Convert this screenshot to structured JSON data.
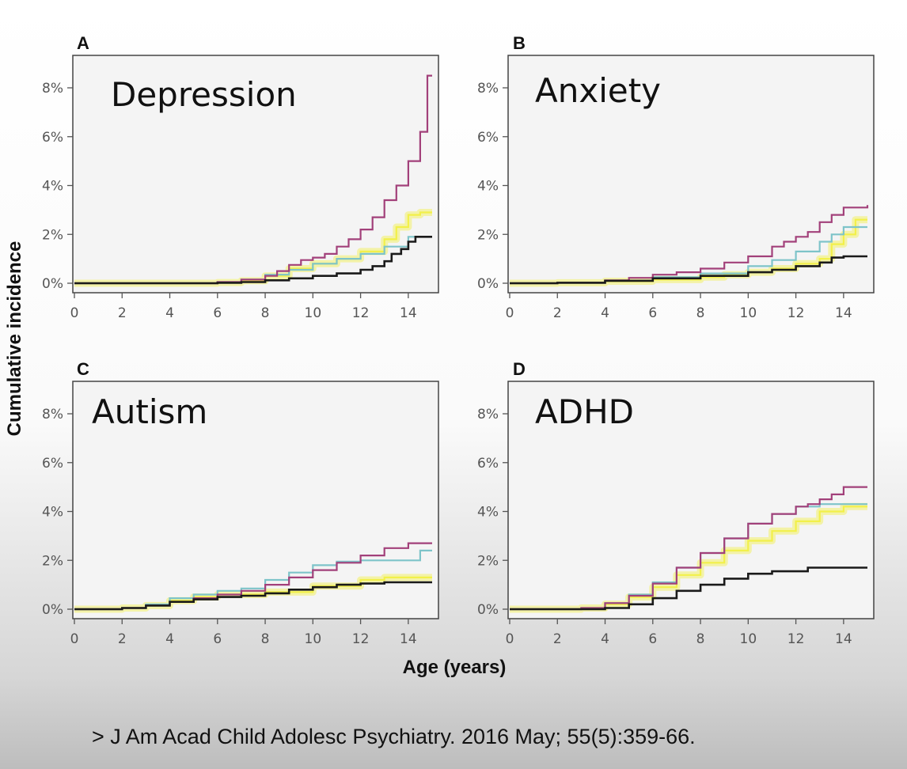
{
  "citation": "> J Am Acad Child Adolesc Psychiatry. 2016 May; 55(5):359-66.",
  "colors": {
    "purple": "#a2407a",
    "cyan": "#7ec4c9",
    "yellow": "#f2f04a",
    "black": "#1a1a1a"
  },
  "chart_data": {
    "type": "line",
    "step": true,
    "xlabel": "Age (years)",
    "ylabel": "Cumulative incidence",
    "xlim": [
      0,
      15
    ],
    "ylim": [
      0,
      9
    ],
    "x_ticks": [
      0,
      2,
      4,
      6,
      8,
      10,
      12,
      14
    ],
    "x_tick_labels": [
      "0",
      "2",
      "4",
      "6",
      "8",
      "10",
      "12",
      "14"
    ],
    "y_ticks": [
      0,
      2,
      4,
      6,
      8
    ],
    "y_tick_labels": [
      "0%",
      "2%",
      "4%",
      "6%",
      "8%"
    ],
    "grid": false,
    "legend": "none",
    "panels": [
      {
        "letter": "A",
        "title": "Depression",
        "series": [
          {
            "color": "#f2f04a",
            "x": [
              0,
              6,
              7,
              8,
              9,
              10,
              11,
              12,
              13,
              13.5,
              14,
              14.5,
              15
            ],
            "y": [
              0,
              0.03,
              0.1,
              0.3,
              0.6,
              0.8,
              1.0,
              1.3,
              1.8,
              2.3,
              2.8,
              2.9,
              2.9
            ]
          },
          {
            "color": "#7ec4c9",
            "x": [
              0,
              6,
              7,
              8,
              9,
              10,
              11,
              12,
              13,
              14,
              15
            ],
            "y": [
              0,
              0.05,
              0.15,
              0.35,
              0.55,
              0.8,
              1.0,
              1.2,
              1.5,
              1.9,
              1.9
            ]
          },
          {
            "color": "#a2407a",
            "x": [
              0,
              6,
              7,
              8,
              8.5,
              9,
              9.5,
              10,
              10.5,
              11,
              11.5,
              12,
              12.5,
              13,
              13.5,
              14,
              14.5,
              14.8,
              15
            ],
            "y": [
              0,
              0.05,
              0.15,
              0.3,
              0.5,
              0.75,
              0.95,
              1.05,
              1.2,
              1.5,
              1.8,
              2.2,
              2.7,
              3.4,
              4.0,
              5.0,
              6.2,
              8.5,
              8.5
            ]
          },
          {
            "color": "#1a1a1a",
            "x": [
              0,
              6,
              7,
              8,
              9,
              10,
              11,
              12,
              12.5,
              13,
              13.3,
              13.7,
              14,
              14.3,
              15
            ],
            "y": [
              0,
              0.02,
              0.05,
              0.12,
              0.2,
              0.3,
              0.4,
              0.55,
              0.7,
              0.9,
              1.2,
              1.4,
              1.7,
              1.9,
              1.9
            ]
          }
        ]
      },
      {
        "letter": "B",
        "title": "Anxiety",
        "series": [
          {
            "color": "#f2f04a",
            "x": [
              0,
              2,
              4,
              6,
              8,
              9,
              10,
              11,
              12,
              13,
              13.5,
              14,
              14.5,
              15
            ],
            "y": [
              0,
              0.02,
              0.08,
              0.15,
              0.25,
              0.35,
              0.45,
              0.6,
              0.8,
              1.0,
              1.6,
              2.0,
              2.6,
              2.6
            ]
          },
          {
            "color": "#7ec4c9",
            "x": [
              0,
              2,
              4,
              6,
              8,
              10,
              11,
              12,
              13,
              13.5,
              14,
              15
            ],
            "y": [
              0,
              0.02,
              0.1,
              0.25,
              0.4,
              0.7,
              0.95,
              1.3,
              1.7,
              2.0,
              2.3,
              2.3
            ]
          },
          {
            "color": "#a2407a",
            "x": [
              0,
              2,
              4,
              5,
              6,
              7,
              8,
              9,
              10,
              11,
              11.5,
              12,
              12.5,
              13,
              13.5,
              14,
              15
            ],
            "y": [
              0,
              0.02,
              0.12,
              0.22,
              0.35,
              0.45,
              0.6,
              0.85,
              1.1,
              1.5,
              1.7,
              1.9,
              2.1,
              2.5,
              2.8,
              3.1,
              3.2
            ]
          },
          {
            "color": "#1a1a1a",
            "x": [
              0,
              2,
              4,
              6,
              8,
              10,
              11,
              12,
              13,
              13.5,
              14,
              15
            ],
            "y": [
              0,
              0.02,
              0.1,
              0.2,
              0.3,
              0.45,
              0.55,
              0.7,
              0.85,
              1.05,
              1.1,
              1.1
            ]
          }
        ]
      },
      {
        "letter": "C",
        "title": "Autism",
        "series": [
          {
            "color": "#f2f04a",
            "x": [
              0,
              2,
              3,
              4,
              5,
              6,
              8,
              10,
              12,
              13,
              15
            ],
            "y": [
              0,
              0.05,
              0.15,
              0.35,
              0.5,
              0.6,
              0.7,
              0.95,
              1.2,
              1.3,
              1.3
            ]
          },
          {
            "color": "#7ec4c9",
            "x": [
              0,
              2,
              3,
              4,
              5,
              6,
              7,
              8,
              9,
              10,
              11,
              12,
              13,
              14,
              14.5,
              15
            ],
            "y": [
              0,
              0.05,
              0.2,
              0.45,
              0.6,
              0.75,
              0.85,
              1.2,
              1.5,
              1.8,
              1.95,
              2.0,
              2.0,
              2.0,
              2.4,
              2.4
            ]
          },
          {
            "color": "#a2407a",
            "x": [
              0,
              2,
              3,
              4,
              5,
              6,
              7,
              8,
              9,
              10,
              11,
              12,
              13,
              14,
              15
            ],
            "y": [
              0,
              0.05,
              0.15,
              0.3,
              0.45,
              0.6,
              0.75,
              1.0,
              1.3,
              1.6,
              1.9,
              2.2,
              2.5,
              2.7,
              2.7
            ]
          },
          {
            "color": "#1a1a1a",
            "x": [
              0,
              2,
              3,
              4,
              5,
              6,
              7,
              8,
              9,
              10,
              11,
              12,
              13,
              15
            ],
            "y": [
              0,
              0.05,
              0.15,
              0.3,
              0.4,
              0.5,
              0.55,
              0.65,
              0.8,
              0.9,
              1.0,
              1.05,
              1.1,
              1.1
            ]
          }
        ]
      },
      {
        "letter": "D",
        "title": "ADHD",
        "series": [
          {
            "color": "#f2f04a",
            "x": [
              0,
              3,
              4,
              5,
              6,
              7,
              8,
              9,
              10,
              11,
              12,
              13,
              14,
              15
            ],
            "y": [
              0,
              0.05,
              0.2,
              0.5,
              0.9,
              1.4,
              1.9,
              2.4,
              2.8,
              3.2,
              3.6,
              4.0,
              4.2,
              4.2
            ]
          },
          {
            "color": "#7ec4c9",
            "x": [
              0,
              3,
              4,
              5,
              6,
              7,
              8,
              9,
              10,
              11,
              12,
              13,
              14,
              15
            ],
            "y": [
              0,
              0.05,
              0.25,
              0.6,
              1.1,
              1.7,
              2.3,
              2.9,
              3.5,
              3.9,
              4.2,
              4.3,
              4.3,
              4.3
            ]
          },
          {
            "color": "#a2407a",
            "x": [
              0,
              3,
              4,
              5,
              6,
              7,
              8,
              9,
              10,
              11,
              12,
              12.5,
              13,
              13.5,
              14,
              15
            ],
            "y": [
              0,
              0.05,
              0.25,
              0.55,
              1.05,
              1.7,
              2.3,
              2.9,
              3.5,
              3.9,
              4.2,
              4.3,
              4.5,
              4.7,
              5.0,
              5.0
            ]
          },
          {
            "color": "#1a1a1a",
            "x": [
              0,
              4,
              5,
              6,
              7,
              8,
              9,
              10,
              11,
              12,
              12.5,
              13,
              15
            ],
            "y": [
              0,
              0.05,
              0.2,
              0.45,
              0.75,
              1.0,
              1.25,
              1.45,
              1.55,
              1.55,
              1.7,
              1.7,
              1.7
            ]
          }
        ]
      }
    ]
  }
}
